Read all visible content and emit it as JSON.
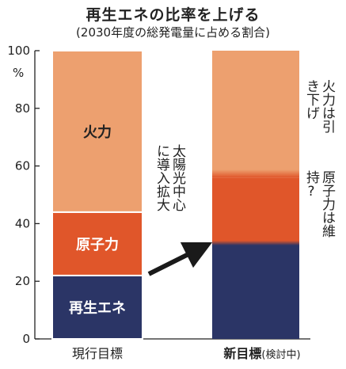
{
  "title": "再生エネの比率を上げる",
  "subtitle": "(2030年度の総発電量に占める割合)",
  "chart_data": {
    "type": "bar",
    "stacked": true,
    "categories": [
      "現行目標",
      "新目標"
    ],
    "category_suffix": [
      "",
      "(検討中)"
    ],
    "ylim": [
      0,
      100
    ],
    "yticks": [
      0,
      20,
      40,
      60,
      80,
      100
    ],
    "yunit": "%",
    "series": [
      {
        "name": "再生エネ",
        "values": [
          22,
          33
        ],
        "color": "#2b3566"
      },
      {
        "name": "原子力",
        "values": [
          22,
          23
        ],
        "color": "#e0562a"
      },
      {
        "name": "火力",
        "values": [
          56,
          44
        ],
        "color": "#eda06f"
      }
    ],
    "annotations": {
      "arrow_label": "太陽光中心に導入拡大",
      "fossil_note": "火力は引き下げ",
      "nuclear_note": "原子力は維持?"
    }
  }
}
